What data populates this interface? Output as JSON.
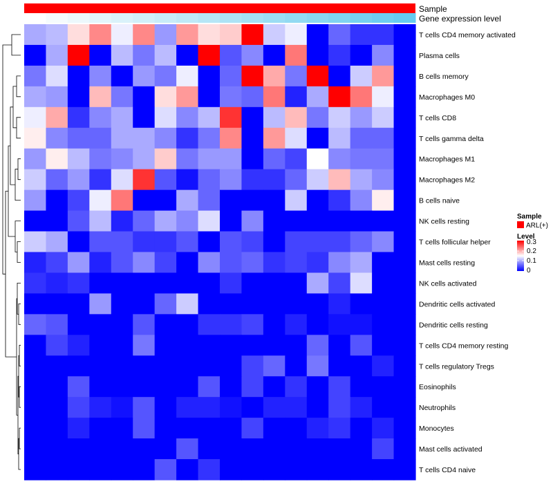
{
  "chart_data": {
    "type": "heatmap",
    "title": "",
    "annotations": [
      {
        "name": "Sample",
        "color": "#ff0000"
      },
      {
        "name": "Gene expression level",
        "colors": [
          "#ffffff",
          "#f5fbfd",
          "#ecf8fc",
          "#e3f5fb",
          "#daf2fa",
          "#d1eff9",
          "#c8ecf8",
          "#bfe9f7",
          "#b6e6f6",
          "#ade3f5",
          "#a4e0f4",
          "#9bddf3",
          "#92daf2",
          "#89d7f1",
          "#80d4f0",
          "#77d1ef",
          "#6ecef0",
          "#66cbf0"
        ]
      },
      {
        "name": "legend",
        "title": "Sample",
        "entries": [
          "ARL(+)"
        ]
      }
    ],
    "color_scale": {
      "title": "Level",
      "min": 0,
      "max": 0.3,
      "low": "#0000ff",
      "mid": "#ffffff",
      "high": "#ff0000",
      "ticks": [
        "0.3",
        "0.2",
        "0.1",
        "0"
      ]
    },
    "rows": [
      "T cells CD4 memory activated",
      "Plasma cells",
      "B cells memory",
      "Macrophages M0",
      "T cells CD8",
      "T cells gamma delta",
      "Macrophages M1",
      "Macrophages M2",
      "B cells naive",
      "NK cells resting",
      "T cells follicular helper",
      "Mast cells resting",
      "NK cells activated",
      "Dendritic cells activated",
      "Dendritic cells resting",
      "T cells CD4 memory resting",
      "T cells regulatory  Tregs",
      "Eosinophils",
      "Neutrophils",
      "Monocytes",
      "Mast cells activated",
      "T cells CD4 naive"
    ],
    "n_columns": 18,
    "values": [
      [
        0.1,
        0.11,
        0.17,
        0.22,
        0.14,
        0.22,
        0.09,
        0.21,
        0.17,
        0.18,
        0.3,
        0.12,
        0.14,
        0.0,
        0.06,
        0.03,
        0.03,
        null
      ],
      [
        0.0,
        0.1,
        0.3,
        0.0,
        0.11,
        0.07,
        0.11,
        0.0,
        0.3,
        0.05,
        0.08,
        0.0,
        0.23,
        0.0,
        0.03,
        0.0,
        0.08,
        null
      ],
      [
        0.07,
        0.13,
        0.0,
        0.08,
        0.0,
        0.09,
        0.07,
        0.14,
        0.0,
        0.06,
        0.3,
        0.2,
        0.07,
        0.3,
        0.0,
        0.12,
        0.21,
        null
      ],
      [
        0.1,
        0.09,
        0.0,
        0.19,
        0.07,
        0.0,
        0.17,
        0.21,
        0.0,
        0.07,
        0.06,
        0.23,
        0.02,
        0.1,
        0.3,
        0.23,
        0.14,
        null
      ],
      [
        0.14,
        0.2,
        0.03,
        0.08,
        0.1,
        0.0,
        0.13,
        0.08,
        0.11,
        0.27,
        0.0,
        0.11,
        0.19,
        0.07,
        0.12,
        0.09,
        0.12,
        null
      ],
      [
        0.16,
        0.08,
        0.06,
        0.06,
        0.1,
        0.1,
        0.08,
        0.03,
        0.07,
        0.22,
        0.0,
        0.21,
        0.13,
        0.0,
        0.11,
        0.06,
        0.06,
        null
      ],
      [
        0.09,
        0.16,
        0.11,
        0.07,
        0.08,
        0.1,
        0.18,
        0.07,
        0.09,
        0.09,
        0.0,
        0.06,
        0.04,
        0.15,
        0.08,
        0.07,
        0.07,
        null
      ],
      [
        0.12,
        0.06,
        0.09,
        0.03,
        0.13,
        0.27,
        0.05,
        0.01,
        0.06,
        0.08,
        0.03,
        0.03,
        0.06,
        0.12,
        0.19,
        0.1,
        0.08,
        null
      ],
      [
        0.09,
        0.0,
        0.04,
        0.14,
        0.23,
        0.0,
        0.0,
        0.1,
        0.06,
        0.0,
        0.0,
        0.0,
        0.12,
        0.0,
        0.03,
        0.08,
        0.16,
        null
      ],
      [
        0.0,
        0.0,
        0.05,
        0.11,
        0.02,
        0.06,
        0.1,
        0.08,
        0.13,
        0.0,
        0.08,
        0.0,
        0.0,
        0.0,
        0.0,
        0.0,
        0.0,
        null
      ],
      [
        0.12,
        0.1,
        0.0,
        0.05,
        0.05,
        0.03,
        0.03,
        0.05,
        0.0,
        0.05,
        0.04,
        0.0,
        0.04,
        0.04,
        0.04,
        0.06,
        0.08,
        null
      ],
      [
        0.02,
        0.04,
        0.09,
        0.02,
        0.05,
        0.08,
        0.04,
        0.0,
        0.08,
        0.05,
        0.06,
        0.03,
        0.04,
        0.03,
        0.08,
        0.1,
        0.0,
        null
      ],
      [
        0.03,
        0.02,
        0.03,
        0.0,
        0.0,
        0.0,
        0.0,
        0.0,
        0.0,
        0.03,
        0.0,
        0.0,
        0.0,
        0.1,
        0.04,
        0.13,
        0.0,
        null
      ],
      [
        0.0,
        0.0,
        0.0,
        0.09,
        0.0,
        0.0,
        0.06,
        0.12,
        0.0,
        0.0,
        0.0,
        0.0,
        0.0,
        0.0,
        0.02,
        0.0,
        0.0,
        null
      ],
      [
        0.06,
        0.05,
        0.0,
        0.0,
        0.0,
        0.05,
        0.0,
        0.0,
        0.03,
        0.03,
        0.04,
        0.0,
        0.02,
        0.0,
        0.01,
        0.01,
        0.0,
        null
      ],
      [
        0.0,
        0.04,
        0.02,
        0.0,
        0.0,
        0.07,
        0.0,
        0.0,
        0.0,
        0.0,
        0.0,
        0.0,
        0.0,
        0.06,
        0.0,
        0.05,
        0.0,
        null
      ],
      [
        0.0,
        0.0,
        0.0,
        0.0,
        0.0,
        0.0,
        0.0,
        0.0,
        0.0,
        0.0,
        0.04,
        0.06,
        0.0,
        0.07,
        0.0,
        0.0,
        0.02,
        null
      ],
      [
        0.0,
        0.0,
        0.05,
        0.0,
        0.0,
        0.0,
        0.0,
        0.0,
        0.05,
        0.0,
        0.04,
        0.0,
        0.03,
        0.0,
        0.04,
        0.0,
        0.0,
        null
      ],
      [
        0.0,
        0.0,
        0.04,
        0.02,
        0.01,
        0.05,
        0.0,
        0.02,
        0.02,
        0.01,
        0.0,
        0.02,
        0.02,
        0.0,
        0.04,
        0.02,
        0.0,
        null
      ],
      [
        0.0,
        0.0,
        0.02,
        0.0,
        0.0,
        0.05,
        0.0,
        0.0,
        0.0,
        0.0,
        0.04,
        0.0,
        0.0,
        0.02,
        0.03,
        0.0,
        0.02,
        null
      ],
      [
        0.0,
        0.0,
        0.0,
        0.0,
        0.0,
        0.0,
        0.0,
        0.05,
        0.0,
        0.0,
        0.0,
        0.0,
        0.0,
        0.0,
        0.0,
        0.0,
        0.04,
        null
      ],
      [
        0.0,
        0.0,
        0.0,
        0.0,
        0.0,
        0.0,
        0.05,
        0.0,
        0.03,
        0.0,
        0.0,
        0.0,
        0.0,
        0.0,
        0.0,
        0.0,
        0.0,
        null
      ]
    ],
    "grid": false,
    "dendrogram": "rows"
  }
}
